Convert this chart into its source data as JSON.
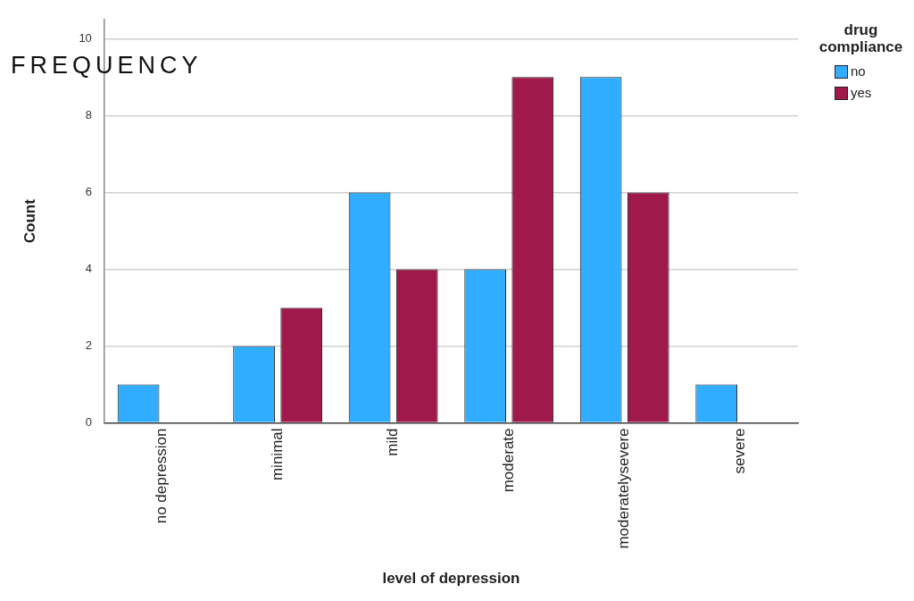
{
  "chart_data": {
    "type": "bar",
    "title": "FREQUENCY",
    "xlabel": "level of depression",
    "ylabel": "Count",
    "legend_title": "drug compliance",
    "categories": [
      "no depression",
      "minimal",
      "mild",
      "moderate",
      "moderatelysevere",
      "severe"
    ],
    "series": [
      {
        "name": "no",
        "color": "#31adff",
        "values": [
          1,
          2,
          6,
          4,
          9,
          1
        ]
      },
      {
        "name": "yes",
        "color": "#a0194b",
        "values": [
          null,
          3,
          4,
          9,
          6,
          null
        ]
      }
    ],
    "ylim": [
      0,
      10.5
    ],
    "yticks": [
      0,
      2,
      4,
      6,
      8,
      10
    ],
    "grid": "y",
    "legend": "top right"
  }
}
